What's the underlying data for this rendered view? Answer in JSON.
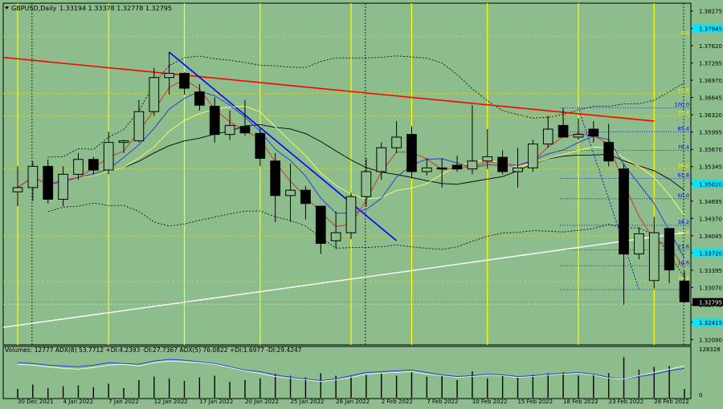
{
  "header": {
    "symbol_label": "GBPUSD,Daily",
    "ohlc_label": "1.33194 1.33378 1.32778 1.32795"
  },
  "indicator_header": "Volumes: 12777 ADX(8) 53.7712 +DI:4.2393 -DI:27.7367 ADX(5) 76.0822 +DI:1.6977 -DI:29.4247",
  "colors": {
    "background": "#8dbd8d",
    "bull": "#90bd90",
    "bear": "#000000",
    "trend_red": "#ff0000",
    "trend_blue": "#0000ff",
    "trend_white": "#ffffff",
    "session_yellow": "#ffff00",
    "fib_level": "#0000cc",
    "current_price_bg": "#000000",
    "level_box": "#00e5ff"
  },
  "chart_data": {
    "type": "candlestick",
    "instrument": "GBPUSD",
    "timeframe": "Daily",
    "y_ticks": [
      "1.38275",
      "1.37945",
      "1.37620",
      "1.37295",
      "1.36970",
      "1.36645",
      "1.36320",
      "1.35995",
      "1.35670",
      "1.35345",
      "1.35020",
      "1.34695",
      "1.34370",
      "1.34045",
      "1.33720",
      "1.33395",
      "1.33070",
      "1.32745",
      "1.32415",
      "1.32090"
    ],
    "ylim": [
      1.3199,
      1.3842
    ],
    "x_labels": [
      "30 Dec 2021",
      "4 Jan 2022",
      "7 Jan 2022",
      "12 Jan 2022",
      "17 Jan 2022",
      "20 Jan 2022",
      "25 Jan 2022",
      "28 Jan 2022",
      "2 Feb 2022",
      "7 Feb 2022",
      "10 Feb 2022",
      "15 Feb 2022",
      "18 Feb 2022",
      "23 Feb 2022",
      "28 Feb 2022"
    ],
    "candles": [
      {
        "o": 1.3487,
        "h": 1.3535,
        "l": 1.346,
        "c": 1.3495
      },
      {
        "o": 1.3495,
        "h": 1.3545,
        "l": 1.347,
        "c": 1.3535
      },
      {
        "o": 1.3535,
        "h": 1.3548,
        "l": 1.3465,
        "c": 1.3473
      },
      {
        "o": 1.3473,
        "h": 1.3535,
        "l": 1.346,
        "c": 1.352
      },
      {
        "o": 1.352,
        "h": 1.356,
        "l": 1.351,
        "c": 1.3548
      },
      {
        "o": 1.3548,
        "h": 1.3553,
        "l": 1.352,
        "c": 1.3528
      },
      {
        "o": 1.3528,
        "h": 1.36,
        "l": 1.352,
        "c": 1.358
      },
      {
        "o": 1.358,
        "h": 1.3585,
        "l": 1.356,
        "c": 1.3583
      },
      {
        "o": 1.3583,
        "h": 1.366,
        "l": 1.358,
        "c": 1.3638
      },
      {
        "o": 1.3638,
        "h": 1.372,
        "l": 1.363,
        "c": 1.3702
      },
      {
        "o": 1.3702,
        "h": 1.375,
        "l": 1.367,
        "c": 1.371
      },
      {
        "o": 1.371,
        "h": 1.3712,
        "l": 1.367,
        "c": 1.3682
      },
      {
        "o": 1.3675,
        "h": 1.369,
        "l": 1.364,
        "c": 1.365
      },
      {
        "o": 1.3648,
        "h": 1.3665,
        "l": 1.358,
        "c": 1.3595
      },
      {
        "o": 1.3595,
        "h": 1.364,
        "l": 1.3585,
        "c": 1.3612
      },
      {
        "o": 1.361,
        "h": 1.366,
        "l": 1.3593,
        "c": 1.3598
      },
      {
        "o": 1.3597,
        "h": 1.3608,
        "l": 1.3535,
        "c": 1.355
      },
      {
        "o": 1.3545,
        "h": 1.356,
        "l": 1.343,
        "c": 1.348
      },
      {
        "o": 1.348,
        "h": 1.354,
        "l": 1.343,
        "c": 1.349
      },
      {
        "o": 1.349,
        "h": 1.3498,
        "l": 1.3435,
        "c": 1.3465
      },
      {
        "o": 1.346,
        "h": 1.346,
        "l": 1.337,
        "c": 1.339
      },
      {
        "o": 1.3395,
        "h": 1.345,
        "l": 1.338,
        "c": 1.341
      },
      {
        "o": 1.341,
        "h": 1.3485,
        "l": 1.3398,
        "c": 1.3478
      },
      {
        "o": 1.3478,
        "h": 1.355,
        "l": 1.346,
        "c": 1.3525
      },
      {
        "o": 1.3525,
        "h": 1.358,
        "l": 1.351,
        "c": 1.357
      },
      {
        "o": 1.357,
        "h": 1.362,
        "l": 1.356,
        "c": 1.359
      },
      {
        "o": 1.3595,
        "h": 1.361,
        "l": 1.3512,
        "c": 1.3525
      },
      {
        "o": 1.3525,
        "h": 1.355,
        "l": 1.3518,
        "c": 1.3532
      },
      {
        "o": 1.3532,
        "h": 1.355,
        "l": 1.3495,
        "c": 1.353
      },
      {
        "o": 1.3537,
        "h": 1.3555,
        "l": 1.3525,
        "c": 1.353
      },
      {
        "o": 1.353,
        "h": 1.365,
        "l": 1.352,
        "c": 1.3545
      },
      {
        "o": 1.3545,
        "h": 1.3605,
        "l": 1.353,
        "c": 1.3553
      },
      {
        "o": 1.3552,
        "h": 1.3565,
        "l": 1.352,
        "c": 1.3525
      },
      {
        "o": 1.3525,
        "h": 1.357,
        "l": 1.3495,
        "c": 1.3532
      },
      {
        "o": 1.3532,
        "h": 1.3585,
        "l": 1.3525,
        "c": 1.3577
      },
      {
        "o": 1.3577,
        "h": 1.363,
        "l": 1.357,
        "c": 1.3605
      },
      {
        "o": 1.3612,
        "h": 1.3645,
        "l": 1.359,
        "c": 1.359
      },
      {
        "o": 1.359,
        "h": 1.3625,
        "l": 1.3585,
        "c": 1.3595
      },
      {
        "o": 1.3605,
        "h": 1.362,
        "l": 1.358,
        "c": 1.3592
      },
      {
        "o": 1.358,
        "h": 1.3615,
        "l": 1.3535,
        "c": 1.3545
      },
      {
        "o": 1.353,
        "h": 1.354,
        "l": 1.3275,
        "c": 1.337
      },
      {
        "o": 1.337,
        "h": 1.342,
        "l": 1.336,
        "c": 1.3408
      },
      {
        "o": 1.332,
        "h": 1.344,
        "l": 1.3305,
        "c": 1.341
      },
      {
        "o": 1.3418,
        "h": 1.3418,
        "l": 1.3315,
        "c": 1.334
      },
      {
        "o": 1.3319,
        "h": 1.3338,
        "l": 1.3278,
        "c": 1.328
      }
    ],
    "volume_axis_max": "128328",
    "volume_axis_min": "0"
  },
  "fib_levels": [
    {
      "label": "100.0",
      "price": 1.3645
    },
    {
      "label": "85.4",
      "price": 1.36
    },
    {
      "label": "76.4",
      "price": 1.3565
    },
    {
      "label": "61.8",
      "price": 1.3512
    },
    {
      "label": "50.0",
      "price": 1.3474
    },
    {
      "label": "38.2",
      "price": 1.3424
    },
    {
      "label": "23.6",
      "price": 1.3378
    },
    {
      "label": "14.6",
      "price": 1.3348
    },
    {
      "label": "0.0",
      "price": 1.3303
    }
  ],
  "fib_levels_yellow": [
    {
      "label": "0.0",
      "price": 1.3779
    },
    {
      "label": "14.6",
      "price": 1.3672
    },
    {
      "label": "23.6",
      "price": 1.363
    },
    {
      "label": "38.2",
      "price": 1.353
    },
    {
      "label": "61.8",
      "price": 1.3404
    },
    {
      "label": "76.4",
      "price": 1.3318
    },
    {
      "label": "85.4",
      "price": 1.3275
    }
  ],
  "current_price_label": "1.32795",
  "level_boxes": [
    {
      "label": "1.37945",
      "price": 1.37945
    },
    {
      "label": "1.35020",
      "price": 1.3502
    },
    {
      "label": "1.33720",
      "price": 1.3372
    },
    {
      "label": "1.32415",
      "price": 1.32415
    }
  ]
}
